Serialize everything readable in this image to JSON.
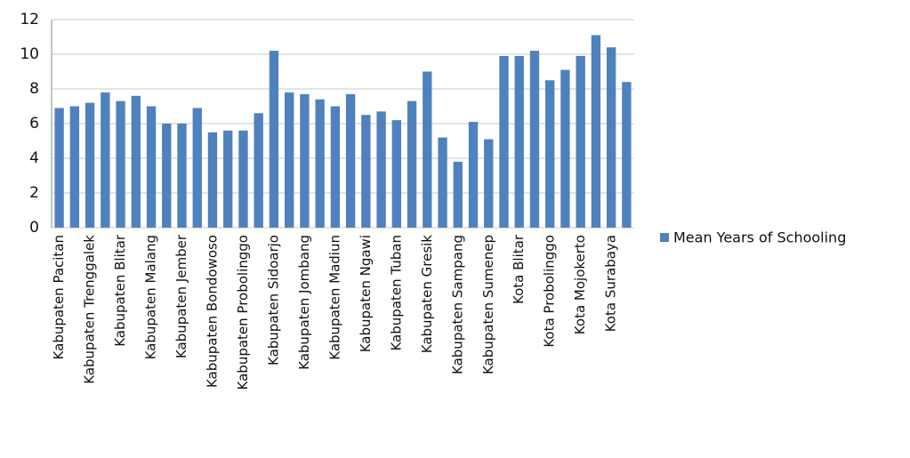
{
  "chart_data": {
    "type": "bar",
    "categories": [
      "Kabupaten Pacitan",
      null,
      "Kabupaten Trenggalek",
      null,
      "Kabupaten Blitar",
      null,
      "Kabupaten Malang",
      null,
      "Kabupaten Jember",
      null,
      "Kabupaten Bondowoso",
      null,
      "Kabupaten Probolinggo",
      null,
      "Kabupaten Sidoarjo",
      null,
      "Kabupaten Jombang",
      null,
      "Kabupaten Madiun",
      null,
      "Kabupaten Ngawi",
      null,
      "Kabupaten Tuban",
      null,
      "Kabupaten Gresik",
      null,
      "Kabupaten Sampang",
      null,
      "Kabupaten Sumenep",
      null,
      "Kota Blitar",
      null,
      "Kota Probolinggo",
      null,
      "Kota Mojokerto",
      null,
      "Kota Surabaya",
      null
    ],
    "series": [
      {
        "name": "Mean Years of Schooling",
        "color": "#4f81bd",
        "values": [
          6.9,
          7.0,
          7.2,
          7.8,
          7.3,
          7.6,
          7.0,
          6.0,
          6.0,
          6.9,
          5.5,
          5.6,
          5.6,
          6.6,
          10.2,
          7.8,
          7.7,
          7.4,
          7.0,
          7.7,
          6.5,
          6.7,
          6.2,
          7.3,
          9.0,
          5.2,
          3.8,
          6.1,
          5.1,
          9.9,
          9.9,
          10.2,
          8.5,
          9.1,
          9.9,
          11.1,
          10.4,
          8.4
        ]
      }
    ],
    "ylim": [
      0,
      12
    ],
    "yticks": [
      0,
      2,
      4,
      6,
      8,
      10,
      12
    ],
    "grid": true,
    "legend": "right"
  }
}
